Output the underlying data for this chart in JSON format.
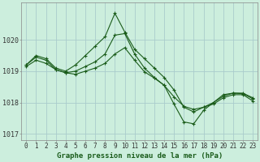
{
  "title": "Graphe pression niveau de la mer (hPa)",
  "bg_color": "#cceedd",
  "grid_color": "#aacccc",
  "line_color": "#1a5c1a",
  "series": [
    [
      1019.2,
      1019.5,
      1019.4,
      1019.1,
      1019.0,
      1019.2,
      1019.5,
      1019.8,
      1020.1,
      1020.85,
      1020.25,
      1019.7,
      1019.4,
      1019.1,
      1018.8,
      1018.4,
      1017.85,
      1017.7,
      1017.85,
      1018.0,
      1018.25,
      1018.3,
      1018.3,
      1018.15
    ],
    [
      1019.2,
      1019.45,
      1019.35,
      1019.05,
      1018.95,
      1019.0,
      1019.15,
      1019.3,
      1019.55,
      1020.15,
      1020.2,
      1019.55,
      1019.1,
      1018.8,
      1018.55,
      1017.95,
      1017.38,
      1017.32,
      1017.75,
      1018.0,
      1018.2,
      1018.3,
      1018.28,
      1018.12
    ],
    [
      1019.15,
      1019.35,
      1019.25,
      1019.05,
      1018.95,
      1018.9,
      1019.0,
      1019.1,
      1019.25,
      1019.55,
      1019.75,
      1019.35,
      1018.98,
      1018.78,
      1018.55,
      1018.18,
      1017.88,
      1017.78,
      1017.85,
      1017.95,
      1018.15,
      1018.25,
      1018.25,
      1018.05
    ]
  ],
  "xlim": [
    -0.5,
    23.5
  ],
  "ylim": [
    1016.8,
    1021.2
  ],
  "yticks": [
    1017,
    1018,
    1019,
    1020
  ],
  "xticks": [
    0,
    1,
    2,
    3,
    4,
    5,
    6,
    7,
    8,
    9,
    10,
    11,
    12,
    13,
    14,
    15,
    16,
    17,
    18,
    19,
    20,
    21,
    22,
    23
  ],
  "xlabel_fontsize": 5.5,
  "ylabel_fontsize": 6.0,
  "title_fontsize": 6.5
}
